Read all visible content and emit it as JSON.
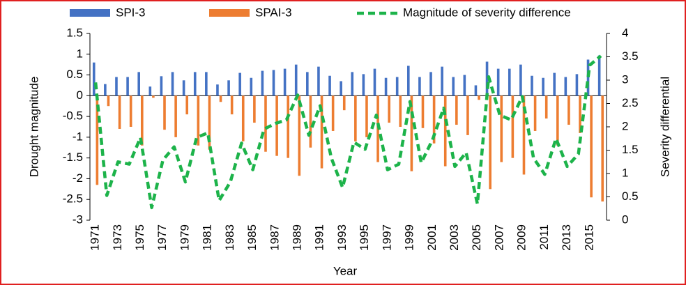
{
  "chart_data": {
    "type": "bar-line",
    "x_label": "Year",
    "y_label": "Drought magnitude",
    "y2_label": "Severity differential",
    "categories": [
      "1971",
      null,
      "1973",
      null,
      "1975",
      null,
      "1977",
      null,
      "1979",
      null,
      "1981",
      null,
      "1983",
      null,
      "1985",
      null,
      "1987",
      null,
      "1989",
      null,
      "1991",
      null,
      "1993",
      null,
      "1995",
      null,
      "1997",
      null,
      "1999",
      null,
      "2001",
      null,
      "2003",
      null,
      "2005",
      null,
      "2007",
      null,
      "2009",
      null,
      "2011",
      null,
      "2013",
      null,
      "2015",
      null
    ],
    "series": [
      {
        "name": "SPI-3",
        "color": "#4472c4",
        "kind": "bar",
        "values": [
          0.8,
          0.28,
          0.45,
          0.45,
          0.57,
          0.22,
          0.47,
          0.57,
          0.37,
          0.57,
          0.57,
          0.27,
          0.37,
          0.55,
          0.43,
          0.6,
          0.62,
          0.65,
          0.75,
          0.57,
          0.7,
          0.48,
          0.35,
          0.57,
          0.52,
          0.65,
          0.43,
          0.45,
          0.72,
          0.45,
          0.57,
          0.7,
          0.45,
          0.5,
          0.25,
          0.82,
          0.65,
          0.65,
          0.75,
          0.48,
          0.43,
          0.55,
          0.45,
          0.52,
          0.87,
          0.97
        ]
      },
      {
        "name": "SPAI-3",
        "color": "#ed7d31",
        "kind": "bar",
        "values": [
          -2.15,
          -0.25,
          -0.8,
          -0.75,
          -1.2,
          -0.05,
          -0.82,
          -1.0,
          -0.45,
          -1.2,
          -1.3,
          -0.15,
          -0.45,
          -1.1,
          -0.65,
          -1.35,
          -1.45,
          -1.5,
          -1.93,
          -1.25,
          -1.75,
          -0.85,
          -0.35,
          -1.1,
          -1.0,
          -1.6,
          -0.65,
          -0.75,
          -1.82,
          -0.78,
          -1.15,
          -1.7,
          -0.7,
          -0.95,
          -0.1,
          -2.25,
          -1.6,
          -1.5,
          -1.9,
          -0.85,
          -0.55,
          -1.2,
          -0.7,
          -0.9,
          -2.45,
          -2.55
        ]
      },
      {
        "name": "Magnitude of severity difference",
        "color": "#1db34a",
        "kind": "line",
        "axis": "y2",
        "values": [
          2.95,
          0.53,
          1.25,
          1.2,
          1.77,
          0.27,
          1.29,
          1.57,
          0.82,
          1.77,
          1.87,
          0.42,
          0.82,
          1.65,
          1.08,
          1.95,
          2.07,
          2.15,
          2.68,
          1.82,
          2.45,
          1.33,
          0.7,
          1.67,
          1.52,
          2.25,
          1.08,
          1.2,
          2.54,
          1.23,
          1.72,
          2.4,
          1.15,
          1.45,
          0.35,
          3.07,
          2.25,
          2.15,
          2.65,
          1.33,
          0.98,
          1.75,
          1.15,
          1.42,
          3.32,
          3.52
        ]
      }
    ],
    "ylim": [
      -3,
      1.5
    ],
    "yticks": [
      1.5,
      1,
      0.5,
      0,
      -0.5,
      -1,
      -1.5,
      -2,
      -2.5,
      -3
    ],
    "y2lim": [
      0,
      4
    ],
    "y2ticks": [
      4,
      3.5,
      3,
      2.5,
      2,
      1.5,
      1,
      0.5,
      0
    ]
  }
}
